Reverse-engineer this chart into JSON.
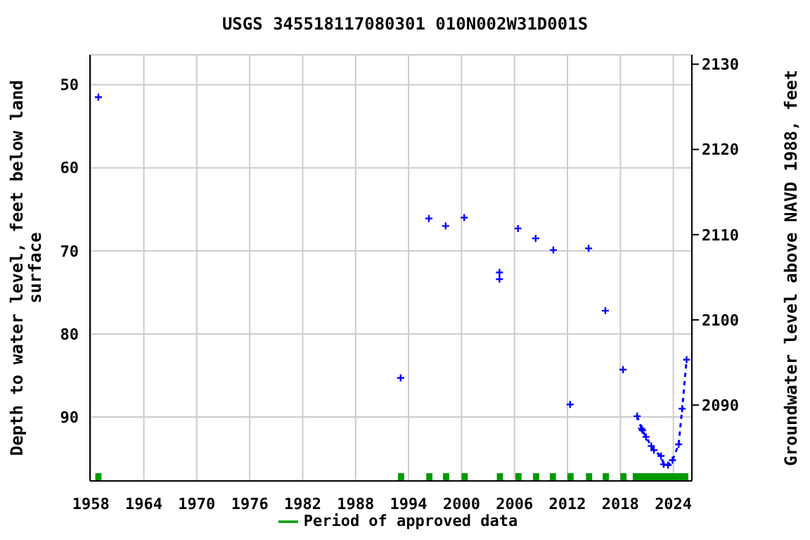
{
  "chart_data": {
    "type": "scatter",
    "title": "USGS 345518117080301 010N002W31D001S",
    "ylabel": "Depth to water level, feet below land surface",
    "y2label": "Groundwater level above NAVD 1988, feet",
    "xlim": [
      1957.9,
      2026.1
    ],
    "xticks": [
      1958,
      1964,
      1970,
      1976,
      1982,
      1988,
      1994,
      2000,
      2006,
      2012,
      2018,
      2024
    ],
    "ylim": [
      97.7,
      46.4
    ],
    "yticks": [
      50,
      60,
      70,
      80,
      90
    ],
    "y2lim": [
      2081.1,
      2131.1
    ],
    "y2ticks": [
      2090,
      2100,
      2110,
      2120,
      2130
    ],
    "grid": true,
    "legend": "bottom",
    "marker": "cross",
    "series": [
      {
        "color": "#0000ff",
        "x": [
          1958.85,
          1993.1,
          1996.3,
          1998.2,
          2000.3,
          2004.3,
          2004.3,
          2006.4,
          2008.4,
          2010.4,
          2012.3,
          2014.4,
          2016.3,
          2018.3
        ],
        "values": [
          51.5,
          85.3,
          66.1,
          67.0,
          66.0,
          72.6,
          73.4,
          67.3,
          68.5,
          69.9,
          88.5,
          69.7,
          77.2,
          84.3
        ]
      },
      {
        "type": "line",
        "line_style": "dashed",
        "color": "#0000ff",
        "x": [
          2019.9,
          2020.4,
          2020.5,
          2020.9,
          2021.5,
          2021.8,
          2022.6,
          2022.9,
          2023.4,
          2023.9,
          2024.6,
          2025.0,
          2025.5
        ],
        "values": [
          89.9,
          91.4,
          91.6,
          92.4,
          93.5,
          94.0,
          94.7,
          95.7,
          95.8,
          95.2,
          93.3,
          89.0,
          83.1
        ]
      },
      {
        "type": "line",
        "name": "Period of approved data",
        "marker": "none",
        "color": "#009900",
        "x": [
          1958.5,
          1959.2,
          null,
          1992.8,
          1993.5,
          null,
          1996.0,
          1996.7,
          null,
          1997.9,
          1998.6,
          null,
          2000.0,
          2000.7,
          null,
          2004.0,
          2004.7,
          null,
          2006.1,
          2006.8,
          null,
          2008.1,
          2008.8,
          null,
          2010.0,
          2010.7,
          null,
          2012.0,
          2012.7,
          null,
          2014.1,
          2014.8,
          null,
          2016.0,
          2016.7,
          null,
          2018.0,
          2018.7,
          null,
          2019.4,
          2025.7
        ],
        "values": [
          97.2,
          97.2,
          null,
          97.2,
          97.2,
          null,
          97.2,
          97.2,
          null,
          97.2,
          97.2,
          null,
          97.2,
          97.2,
          null,
          97.2,
          97.2,
          null,
          97.2,
          97.2,
          null,
          97.2,
          97.2,
          null,
          97.2,
          97.2,
          null,
          97.2,
          97.2,
          null,
          97.2,
          97.2,
          null,
          97.2,
          97.2,
          null,
          97.2,
          97.2,
          null,
          97.2,
          97.2
        ]
      }
    ]
  }
}
